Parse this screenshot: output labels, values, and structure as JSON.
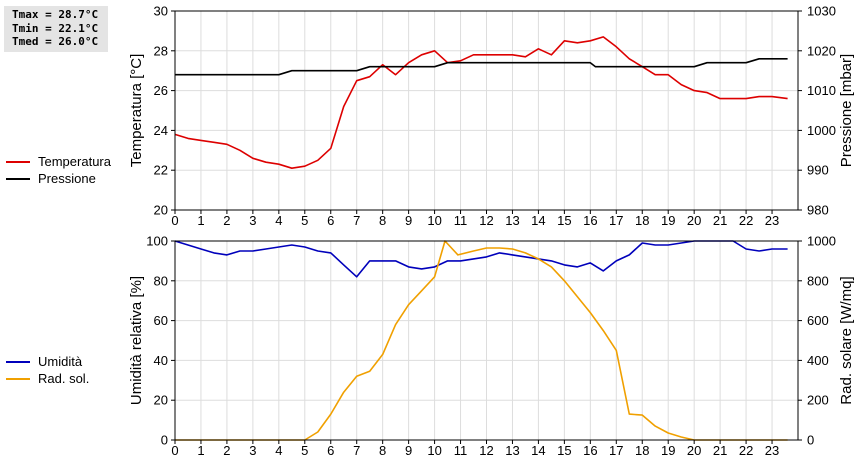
{
  "stats": {
    "tmax": "Tmax = 28.7°C",
    "tmin": "Tmin = 22.1°C",
    "tmed": "Tmed = 26.0°C"
  },
  "colors": {
    "temperatura": "#dd0000",
    "pressione": "#000000",
    "umidita": "#0000bb",
    "rad_sol": "#f0a000",
    "grid": "#dddddd"
  },
  "legend_top": [
    {
      "label": "Temperatura",
      "color": "#dd0000"
    },
    {
      "label": "Pressione",
      "color": "#000000"
    }
  ],
  "legend_bottom": [
    {
      "label": "Umidità",
      "color": "#0000bb"
    },
    {
      "label": "Rad. sol.",
      "color": "#f0a000"
    }
  ],
  "chart_data": [
    {
      "type": "line",
      "ylabel": "Temperatura [°C]",
      "y2label": "Pressione [mbar]",
      "xlim": [
        0,
        24
      ],
      "ylim": [
        20,
        30
      ],
      "y2lim": [
        980,
        1030
      ],
      "xticks": [
        0,
        1,
        2,
        3,
        4,
        5,
        6,
        7,
        8,
        9,
        10,
        11,
        12,
        13,
        14,
        15,
        16,
        17,
        18,
        19,
        20,
        21,
        22,
        23
      ],
      "yticks": [
        20,
        22,
        24,
        26,
        28,
        30
      ],
      "y2ticks": [
        980,
        990,
        1000,
        1010,
        1020,
        1030
      ],
      "grid": true,
      "series": [
        {
          "name": "Temperatura",
          "axis": "left",
          "points": [
            [
              0,
              23.8
            ],
            [
              0.5,
              23.6
            ],
            [
              1,
              23.5
            ],
            [
              1.5,
              23.4
            ],
            [
              2,
              23.3
            ],
            [
              2.5,
              23.0
            ],
            [
              3,
              22.6
            ],
            [
              3.5,
              22.4
            ],
            [
              4,
              22.3
            ],
            [
              4.5,
              22.1
            ],
            [
              5,
              22.2
            ],
            [
              5.5,
              22.5
            ],
            [
              6,
              23.1
            ],
            [
              6.5,
              25.2
            ],
            [
              7,
              26.5
            ],
            [
              7.5,
              26.7
            ],
            [
              8,
              27.3
            ],
            [
              8.5,
              26.8
            ],
            [
              9,
              27.4
            ],
            [
              9.5,
              27.8
            ],
            [
              10,
              28.0
            ],
            [
              10.5,
              27.4
            ],
            [
              11,
              27.5
            ],
            [
              11.5,
              27.8
            ],
            [
              12,
              27.8
            ],
            [
              12.5,
              27.8
            ],
            [
              13,
              27.8
            ],
            [
              13.5,
              27.7
            ],
            [
              14,
              28.1
            ],
            [
              14.5,
              27.8
            ],
            [
              15,
              28.5
            ],
            [
              15.5,
              28.4
            ],
            [
              16,
              28.5
            ],
            [
              16.5,
              28.7
            ],
            [
              17,
              28.2
            ],
            [
              17.5,
              27.6
            ],
            [
              18,
              27.2
            ],
            [
              18.5,
              26.8
            ],
            [
              19,
              26.8
            ],
            [
              19.5,
              26.3
            ],
            [
              20,
              26.0
            ],
            [
              20.5,
              25.9
            ],
            [
              21,
              25.6
            ],
            [
              21.5,
              25.6
            ],
            [
              22,
              25.6
            ],
            [
              22.5,
              25.7
            ],
            [
              23,
              25.7
            ],
            [
              23.6,
              25.6
            ]
          ]
        },
        {
          "name": "Pressione",
          "axis": "right",
          "points": [
            [
              0,
              1014
            ],
            [
              1,
              1014
            ],
            [
              2,
              1014
            ],
            [
              3,
              1014
            ],
            [
              4,
              1014
            ],
            [
              4.5,
              1015
            ],
            [
              5,
              1015
            ],
            [
              6,
              1015
            ],
            [
              7,
              1015
            ],
            [
              7.5,
              1016
            ],
            [
              8,
              1016
            ],
            [
              9,
              1016
            ],
            [
              10,
              1016
            ],
            [
              10.5,
              1017
            ],
            [
              11,
              1017
            ],
            [
              12,
              1017
            ],
            [
              13,
              1017
            ],
            [
              14,
              1017
            ],
            [
              15,
              1017
            ],
            [
              16,
              1017
            ],
            [
              16.2,
              1016
            ],
            [
              17,
              1016
            ],
            [
              18,
              1016
            ],
            [
              19,
              1016
            ],
            [
              20,
              1016
            ],
            [
              20.5,
              1017
            ],
            [
              21,
              1017
            ],
            [
              22,
              1017
            ],
            [
              22.5,
              1018
            ],
            [
              23,
              1018
            ],
            [
              23.6,
              1018
            ]
          ]
        }
      ]
    },
    {
      "type": "line",
      "ylabel": "Umidità relativa [%]",
      "y2label": "Rad. solare [W/mq]",
      "xlim": [
        0,
        24
      ],
      "ylim": [
        0,
        100
      ],
      "y2lim": [
        0,
        1000
      ],
      "xticks": [
        0,
        1,
        2,
        3,
        4,
        5,
        6,
        7,
        8,
        9,
        10,
        11,
        12,
        13,
        14,
        15,
        16,
        17,
        18,
        19,
        20,
        21,
        22,
        23
      ],
      "yticks": [
        0,
        20,
        40,
        60,
        80,
        100
      ],
      "y2ticks": [
        0,
        200,
        400,
        600,
        800,
        1000
      ],
      "grid": true,
      "series": [
        {
          "name": "Umidità",
          "axis": "left",
          "points": [
            [
              0,
              100
            ],
            [
              0.5,
              98
            ],
            [
              1,
              96
            ],
            [
              1.5,
              94
            ],
            [
              2,
              93
            ],
            [
              2.5,
              95
            ],
            [
              3,
              95
            ],
            [
              3.5,
              96
            ],
            [
              4,
              97
            ],
            [
              4.5,
              98
            ],
            [
              5,
              97
            ],
            [
              5.5,
              95
            ],
            [
              6,
              94
            ],
            [
              6.5,
              88
            ],
            [
              7,
              82
            ],
            [
              7.5,
              90
            ],
            [
              8,
              90
            ],
            [
              8.5,
              90
            ],
            [
              9,
              87
            ],
            [
              9.5,
              86
            ],
            [
              10,
              87
            ],
            [
              10.5,
              90
            ],
            [
              11,
              90
            ],
            [
              11.5,
              91
            ],
            [
              12,
              92
            ],
            [
              12.5,
              94
            ],
            [
              13,
              93
            ],
            [
              13.5,
              92
            ],
            [
              14,
              91
            ],
            [
              14.5,
              90
            ],
            [
              15,
              88
            ],
            [
              15.5,
              87
            ],
            [
              16,
              89
            ],
            [
              16.5,
              85
            ],
            [
              17,
              90
            ],
            [
              17.5,
              93
            ],
            [
              18,
              99
            ],
            [
              18.5,
              98
            ],
            [
              19,
              98
            ],
            [
              19.5,
              99
            ],
            [
              20,
              100
            ],
            [
              20.5,
              100
            ],
            [
              21,
              100
            ],
            [
              21.5,
              100
            ],
            [
              22,
              96
            ],
            [
              22.5,
              95
            ],
            [
              23,
              96
            ],
            [
              23.6,
              96
            ]
          ]
        },
        {
          "name": "Rad. sol.",
          "axis": "right",
          "points": [
            [
              0,
              0
            ],
            [
              1,
              0
            ],
            [
              2,
              0
            ],
            [
              3,
              0
            ],
            [
              4,
              0
            ],
            [
              4.5,
              0
            ],
            [
              5,
              0
            ],
            [
              5.5,
              40
            ],
            [
              6,
              130
            ],
            [
              6.5,
              240
            ],
            [
              7,
              320
            ],
            [
              7.5,
              345
            ],
            [
              8,
              430
            ],
            [
              8.5,
              580
            ],
            [
              9,
              680
            ],
            [
              9.5,
              750
            ],
            [
              10,
              820
            ],
            [
              10.4,
              1000
            ],
            [
              10.9,
              930
            ],
            [
              11.5,
              950
            ],
            [
              12,
              965
            ],
            [
              12.5,
              965
            ],
            [
              13,
              960
            ],
            [
              13.5,
              940
            ],
            [
              14,
              910
            ],
            [
              14.5,
              870
            ],
            [
              15,
              800
            ],
            [
              15.5,
              720
            ],
            [
              16,
              640
            ],
            [
              16.5,
              550
            ],
            [
              17,
              450
            ],
            [
              17.5,
              130
            ],
            [
              18,
              125
            ],
            [
              18.5,
              70
            ],
            [
              19,
              35
            ],
            [
              19.5,
              15
            ],
            [
              20,
              0
            ],
            [
              21,
              0
            ],
            [
              22,
              0
            ],
            [
              23,
              0
            ],
            [
              23.6,
              0
            ]
          ]
        }
      ]
    }
  ]
}
